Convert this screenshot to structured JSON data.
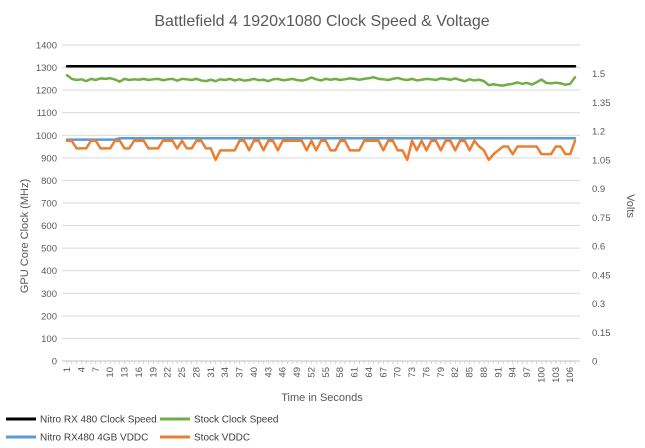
{
  "chart_data": {
    "type": "line",
    "title": "Battlefield 4 1920x1080 Clock Speed & Voltage",
    "xlabel": "Time in Seconds",
    "ylabel": "GPU Core Clock (MHz)",
    "y2label": "Volts",
    "ylim": [
      0,
      1400
    ],
    "y2lim": [
      0,
      1.65
    ],
    "yticks": [
      "0",
      "100",
      "200",
      "300",
      "400",
      "500",
      "600",
      "700",
      "800",
      "900",
      "1000",
      "1100",
      "1200",
      "1300",
      "1400"
    ],
    "y2ticks": [
      "0",
      "0.15",
      "0.3",
      "0.45",
      "0.6",
      "0.75",
      "0.9",
      "1.05",
      "1.2",
      "1.35",
      "1.5"
    ],
    "x": [
      1,
      2,
      3,
      4,
      5,
      6,
      7,
      8,
      9,
      10,
      11,
      12,
      13,
      14,
      15,
      16,
      17,
      18,
      19,
      20,
      21,
      22,
      23,
      24,
      25,
      26,
      27,
      28,
      29,
      30,
      31,
      32,
      33,
      34,
      35,
      36,
      37,
      38,
      39,
      40,
      41,
      42,
      43,
      44,
      45,
      46,
      47,
      48,
      49,
      50,
      51,
      52,
      53,
      54,
      55,
      56,
      57,
      58,
      59,
      60,
      61,
      62,
      63,
      64,
      65,
      66,
      67,
      68,
      69,
      70,
      71,
      72,
      73,
      74,
      75,
      76,
      77,
      78,
      79,
      80,
      81,
      82,
      83,
      84,
      85,
      86,
      87,
      88,
      89,
      90,
      91,
      92,
      93,
      94,
      95,
      96,
      97,
      98,
      99,
      100,
      101,
      102,
      103,
      104,
      105,
      106,
      107
    ],
    "xticks": [
      "1",
      "4",
      "7",
      "10",
      "13",
      "16",
      "19",
      "22",
      "25",
      "28",
      "31",
      "34",
      "37",
      "40",
      "43",
      "46",
      "49",
      "52",
      "55",
      "58",
      "61",
      "64",
      "67",
      "70",
      "73",
      "76",
      "79",
      "82",
      "85",
      "88",
      "91",
      "94",
      "97",
      "100",
      "103",
      "106"
    ],
    "grid": true,
    "legend_position": "bottom",
    "series": [
      {
        "name": "Nitro RX 480 Clock Speed",
        "axis": "left",
        "color": "#000000",
        "values": [
          1306,
          1306,
          1306,
          1306,
          1306,
          1306,
          1306,
          1306,
          1306,
          1306,
          1306,
          1306,
          1306,
          1306,
          1306,
          1306,
          1306,
          1306,
          1306,
          1306,
          1306,
          1306,
          1306,
          1306,
          1306,
          1306,
          1306,
          1306,
          1306,
          1306,
          1306,
          1306,
          1306,
          1306,
          1306,
          1306,
          1306,
          1306,
          1306,
          1306,
          1306,
          1306,
          1306,
          1306,
          1306,
          1306,
          1306,
          1306,
          1306,
          1306,
          1306,
          1306,
          1306,
          1306,
          1306,
          1306,
          1306,
          1306,
          1306,
          1306,
          1306,
          1306,
          1306,
          1306,
          1306,
          1306,
          1306,
          1306,
          1306,
          1306,
          1306,
          1306,
          1306,
          1306,
          1306,
          1306,
          1306,
          1306,
          1306,
          1306,
          1306,
          1306,
          1306,
          1306,
          1306,
          1306,
          1306,
          1306,
          1306,
          1306,
          1306,
          1306,
          1306,
          1306,
          1306,
          1306,
          1306,
          1306,
          1306,
          1306,
          1306,
          1306,
          1306,
          1306,
          1306,
          1306,
          1306
        ]
      },
      {
        "name": "Stock Clock Speed",
        "axis": "left",
        "color": "#70ad47",
        "values": [
          1266,
          1250,
          1245,
          1248,
          1240,
          1250,
          1245,
          1252,
          1250,
          1253,
          1247,
          1238,
          1250,
          1245,
          1248,
          1246,
          1250,
          1245,
          1248,
          1250,
          1244,
          1248,
          1250,
          1242,
          1250,
          1248,
          1245,
          1250,
          1243,
          1240,
          1246,
          1240,
          1248,
          1245,
          1250,
          1243,
          1248,
          1242,
          1245,
          1250,
          1244,
          1246,
          1240,
          1248,
          1250,
          1244,
          1246,
          1250,
          1245,
          1242,
          1247,
          1256,
          1248,
          1243,
          1250,
          1246,
          1250,
          1245,
          1248,
          1252,
          1250,
          1246,
          1250,
          1253,
          1257,
          1250,
          1248,
          1245,
          1250,
          1254,
          1248,
          1245,
          1250,
          1243,
          1246,
          1250,
          1248,
          1245,
          1252,
          1250,
          1246,
          1252,
          1245,
          1240,
          1248,
          1243,
          1246,
          1240,
          1222,
          1226,
          1222,
          1220,
          1225,
          1228,
          1234,
          1228,
          1232,
          1225,
          1235,
          1247,
          1232,
          1230,
          1233,
          1230,
          1224,
          1228,
          1257
        ]
      },
      {
        "name": "Nitro RX480 4GB VDDC",
        "axis": "right",
        "color": "#5b9bd5",
        "values": [
          1.156,
          1.156,
          1.156,
          1.156,
          1.156,
          1.156,
          1.156,
          1.156,
          1.156,
          1.156,
          1.156,
          1.163,
          1.163,
          1.163,
          1.163,
          1.163,
          1.163,
          1.163,
          1.163,
          1.163,
          1.163,
          1.163,
          1.163,
          1.163,
          1.163,
          1.163,
          1.163,
          1.163,
          1.163,
          1.163,
          1.163,
          1.163,
          1.163,
          1.163,
          1.163,
          1.163,
          1.163,
          1.163,
          1.163,
          1.163,
          1.163,
          1.163,
          1.163,
          1.163,
          1.163,
          1.163,
          1.163,
          1.163,
          1.163,
          1.163,
          1.163,
          1.163,
          1.163,
          1.163,
          1.163,
          1.163,
          1.163,
          1.163,
          1.163,
          1.163,
          1.163,
          1.163,
          1.163,
          1.163,
          1.163,
          1.163,
          1.163,
          1.163,
          1.163,
          1.163,
          1.163,
          1.163,
          1.163,
          1.163,
          1.163,
          1.163,
          1.163,
          1.163,
          1.163,
          1.163,
          1.163,
          1.163,
          1.163,
          1.163,
          1.163,
          1.163,
          1.163,
          1.163,
          1.163,
          1.163,
          1.163,
          1.163,
          1.163,
          1.163,
          1.163,
          1.163,
          1.163,
          1.163,
          1.163,
          1.163,
          1.163,
          1.163,
          1.163,
          1.163,
          1.163,
          1.163,
          1.163
        ]
      },
      {
        "name": "Stock VDDC",
        "axis": "right",
        "color": "#ed7d31",
        "values": [
          1.15,
          1.15,
          1.11,
          1.11,
          1.11,
          1.15,
          1.15,
          1.11,
          1.11,
          1.11,
          1.15,
          1.15,
          1.11,
          1.11,
          1.15,
          1.15,
          1.15,
          1.11,
          1.11,
          1.11,
          1.15,
          1.15,
          1.15,
          1.11,
          1.15,
          1.11,
          1.11,
          1.15,
          1.15,
          1.11,
          1.11,
          1.05,
          1.1,
          1.1,
          1.1,
          1.1,
          1.15,
          1.15,
          1.1,
          1.15,
          1.15,
          1.1,
          1.15,
          1.15,
          1.1,
          1.15,
          1.15,
          1.15,
          1.15,
          1.15,
          1.1,
          1.15,
          1.1,
          1.15,
          1.15,
          1.1,
          1.1,
          1.15,
          1.15,
          1.1,
          1.1,
          1.1,
          1.15,
          1.15,
          1.15,
          1.15,
          1.1,
          1.15,
          1.15,
          1.1,
          1.1,
          1.05,
          1.15,
          1.1,
          1.15,
          1.1,
          1.15,
          1.15,
          1.1,
          1.15,
          1.15,
          1.1,
          1.15,
          1.15,
          1.1,
          1.15,
          1.12,
          1.1,
          1.05,
          1.08,
          1.1,
          1.12,
          1.12,
          1.08,
          1.12,
          1.12,
          1.12,
          1.12,
          1.12,
          1.08,
          1.08,
          1.08,
          1.12,
          1.12,
          1.08,
          1.08,
          1.15
        ]
      }
    ]
  }
}
